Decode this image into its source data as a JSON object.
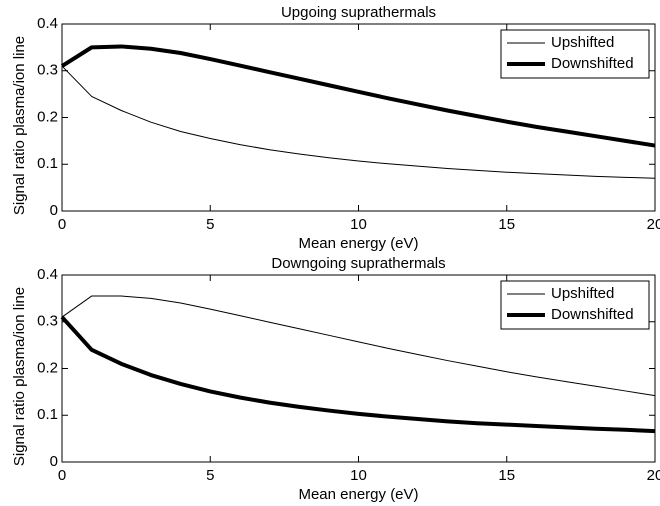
{
  "chart_data": [
    {
      "type": "line",
      "title": "Upgoing suprathermals",
      "x_label": "Mean energy (eV)",
      "y_label": "Signal ratio plasma/ion line",
      "x": [
        0,
        1,
        2,
        3,
        4,
        5,
        6,
        7,
        8,
        9,
        10,
        11,
        12,
        13,
        14,
        15,
        16,
        17,
        18,
        19,
        20
      ],
      "series": [
        {
          "name": "Upshifted",
          "color": "#000000",
          "linewidth": 1,
          "values": [
            0.31,
            0.245,
            0.215,
            0.19,
            0.17,
            0.155,
            0.142,
            0.131,
            0.122,
            0.114,
            0.107,
            0.101,
            0.096,
            0.091,
            0.087,
            0.083,
            0.08,
            0.077,
            0.074,
            0.072,
            0.07
          ]
        },
        {
          "name": "Downshifted",
          "color": "#000000",
          "linewidth": 4,
          "values": [
            0.31,
            0.35,
            0.352,
            0.347,
            0.338,
            0.325,
            0.311,
            0.297,
            0.283,
            0.269,
            0.255,
            0.241,
            0.228,
            0.215,
            0.203,
            0.191,
            0.18,
            0.17,
            0.16,
            0.15,
            0.14
          ]
        }
      ],
      "xlim": [
        0,
        20
      ],
      "xticks": [
        0,
        5,
        10,
        15,
        20
      ],
      "ylim": [
        0,
        0.4
      ],
      "yticks": [
        0,
        0.1,
        0.2,
        0.3,
        0.4
      ],
      "grid": false,
      "legend": "upper right"
    },
    {
      "type": "line",
      "title": "Downgoing suprathermals",
      "x_label": "Mean energy (eV)",
      "y_label": "Signal ratio plasma/ion line",
      "x": [
        0,
        1,
        2,
        3,
        4,
        5,
        6,
        7,
        8,
        9,
        10,
        11,
        12,
        13,
        14,
        15,
        16,
        17,
        18,
        19,
        20
      ],
      "series": [
        {
          "name": "Upshifted",
          "color": "#000000",
          "linewidth": 1,
          "values": [
            0.31,
            0.355,
            0.355,
            0.35,
            0.34,
            0.327,
            0.313,
            0.299,
            0.285,
            0.271,
            0.257,
            0.243,
            0.23,
            0.217,
            0.205,
            0.193,
            0.182,
            0.172,
            0.162,
            0.152,
            0.142
          ]
        },
        {
          "name": "Downshifted",
          "color": "#000000",
          "linewidth": 4,
          "values": [
            0.31,
            0.24,
            0.21,
            0.186,
            0.167,
            0.151,
            0.138,
            0.127,
            0.118,
            0.11,
            0.103,
            0.097,
            0.092,
            0.087,
            0.083,
            0.08,
            0.077,
            0.074,
            0.071,
            0.069,
            0.066
          ]
        }
      ],
      "xlim": [
        0,
        20
      ],
      "xticks": [
        0,
        5,
        10,
        15,
        20
      ],
      "ylim": [
        0,
        0.4
      ],
      "yticks": [
        0,
        0.1,
        0.2,
        0.3,
        0.4
      ],
      "grid": false,
      "legend": "upper right"
    }
  ]
}
